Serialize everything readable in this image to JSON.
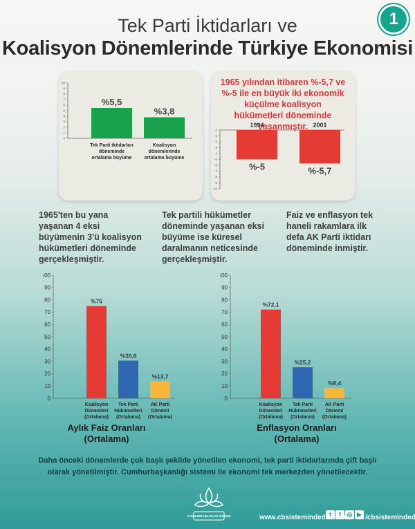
{
  "header": {
    "title_line1": "Tek Parti İktidarları ve",
    "title_line2": "Koalisyon Dönemlerinde Türkiye Ekonomisi",
    "badge": "1"
  },
  "colors": {
    "green": "#17a24b",
    "red": "#e63b35",
    "blue": "#2f67b1",
    "orange": "#f8b738",
    "panel_text_red": "#d9383b"
  },
  "panel_right_text": "1965 yılından itibaren %-5,7 ve %-5 ile en büyük iki ekonomik küçülme koalisyon hükümetleri döneminde yaşanmıştır.",
  "paragraphs": {
    "p1": "1965'ten bu yana yaşanan 4 eksi büyümenin 3'ü koalisyon hükümetleri döneminde gerçekleşmiştir.",
    "p2": "Tek partili hükümetler döneminde yaşanan eksi büyüme ise küresel daralmanın neticesinde gerçekleşmiştir.",
    "p3": "Faiz ve enflasyon tek haneli rakamlara ilk defa AK Parti iktidarı döneminde inmiştir."
  },
  "footer": {
    "note": "Daha önceki dönemlerde çok başlı şekilde yönetilen ekonomi, tek parti iktidarlarında çift başlı olarak yönetilmiştir. Cumhurbaşkanlığı sistemi ile ekonomi tek merkezden yönetilecektir.",
    "logo_text": "CUMHURBAŞKANLIĞI SİSTEMİ",
    "website": "www.cbsistemindedir.com",
    "handle": "/cbsistemindedir",
    "social_icons": [
      "twitter-icon",
      "facebook-icon",
      "instagram-icon",
      "youtube-icon"
    ]
  },
  "chart_data": [
    {
      "type": "bar",
      "categories": [
        "Tek Parti iktidarları döneminde ortalama büyüme",
        "Koalisyon dönemlerinde ortalama büyüme"
      ],
      "category_lines": [
        [
          "Tek Parti iktidarları",
          "döneminde",
          "ortalama büyüme"
        ],
        [
          "Koalisyon",
          "dönemlerinde",
          "ortalama büyüme"
        ]
      ],
      "values": [
        5.5,
        3.8
      ],
      "data_labels": [
        "%5,5",
        "%3,8"
      ],
      "colors": [
        "#17a24b",
        "#17a24b"
      ],
      "ylim": [
        0,
        10
      ],
      "yticks": [
        "0",
        "1",
        "2",
        "3",
        "4",
        "5",
        "6",
        "7",
        "8",
        "9",
        "10"
      ]
    },
    {
      "type": "bar",
      "categories": [
        "1994",
        "2001"
      ],
      "values": [
        -5,
        -5.7
      ],
      "data_labels": [
        "%-5",
        "%-5,7"
      ],
      "colors": [
        "#e63b35",
        "#e63b35"
      ],
      "ylim": [
        -10,
        0
      ],
      "yticks": [
        "0",
        "-1",
        "-2",
        "-3",
        "-4",
        "-5",
        "-6",
        "-7",
        "-8",
        "-9",
        "-10"
      ]
    },
    {
      "type": "bar",
      "title": "Aylık Faiz Oranları",
      "subtitle": "(Ortalama)",
      "categories": [
        "Koalisyon Dönemleri (Ortalama)",
        "Tek Parti Hükümetleri (Ortalama)",
        "AK Parti Dönemi (Ortalama)"
      ],
      "category_lines": [
        [
          "Koalisyon",
          "Dönemleri",
          "(Ortalama)"
        ],
        [
          "Tek Parti",
          "Hükümetleri",
          "(Ortalama)"
        ],
        [
          "AK Parti",
          "Dönemi",
          "(Ortalama)"
        ]
      ],
      "values": [
        75,
        30.6,
        13.7
      ],
      "data_labels": [
        "%75",
        "%30,6",
        "%13,7"
      ],
      "colors": [
        "#e63b35",
        "#2f67b1",
        "#f8b738"
      ],
      "ylim": [
        0,
        100
      ],
      "yticks": [
        "0",
        "10",
        "20",
        "30",
        "40",
        "50",
        "60",
        "70",
        "80",
        "90",
        "100"
      ]
    },
    {
      "type": "bar",
      "title": "Enflasyon Oranları",
      "subtitle": "(Ortalama)",
      "categories": [
        "Koalisyon Dönemleri (Ortalama)",
        "Tek Parti Hükümetleri (Ortalama)",
        "AK Parti Dönemi (Ortalama)"
      ],
      "category_lines": [
        [
          "Koalisyon",
          "Dönemleri",
          "(Ortalama)"
        ],
        [
          "Tek Parti",
          "Hükümetleri",
          "(Ortalama)"
        ],
        [
          "AK Parti",
          "Dönemi",
          "(Ortalama)"
        ]
      ],
      "values": [
        72.1,
        25.2,
        8.4
      ],
      "data_labels": [
        "%72,1",
        "%25,2",
        "%8,4"
      ],
      "colors": [
        "#e63b35",
        "#2f67b1",
        "#f8b738"
      ],
      "ylim": [
        0,
        100
      ],
      "yticks": [
        "0",
        "10",
        "20",
        "30",
        "40",
        "50",
        "60",
        "70",
        "80",
        "90",
        "100"
      ]
    }
  ]
}
